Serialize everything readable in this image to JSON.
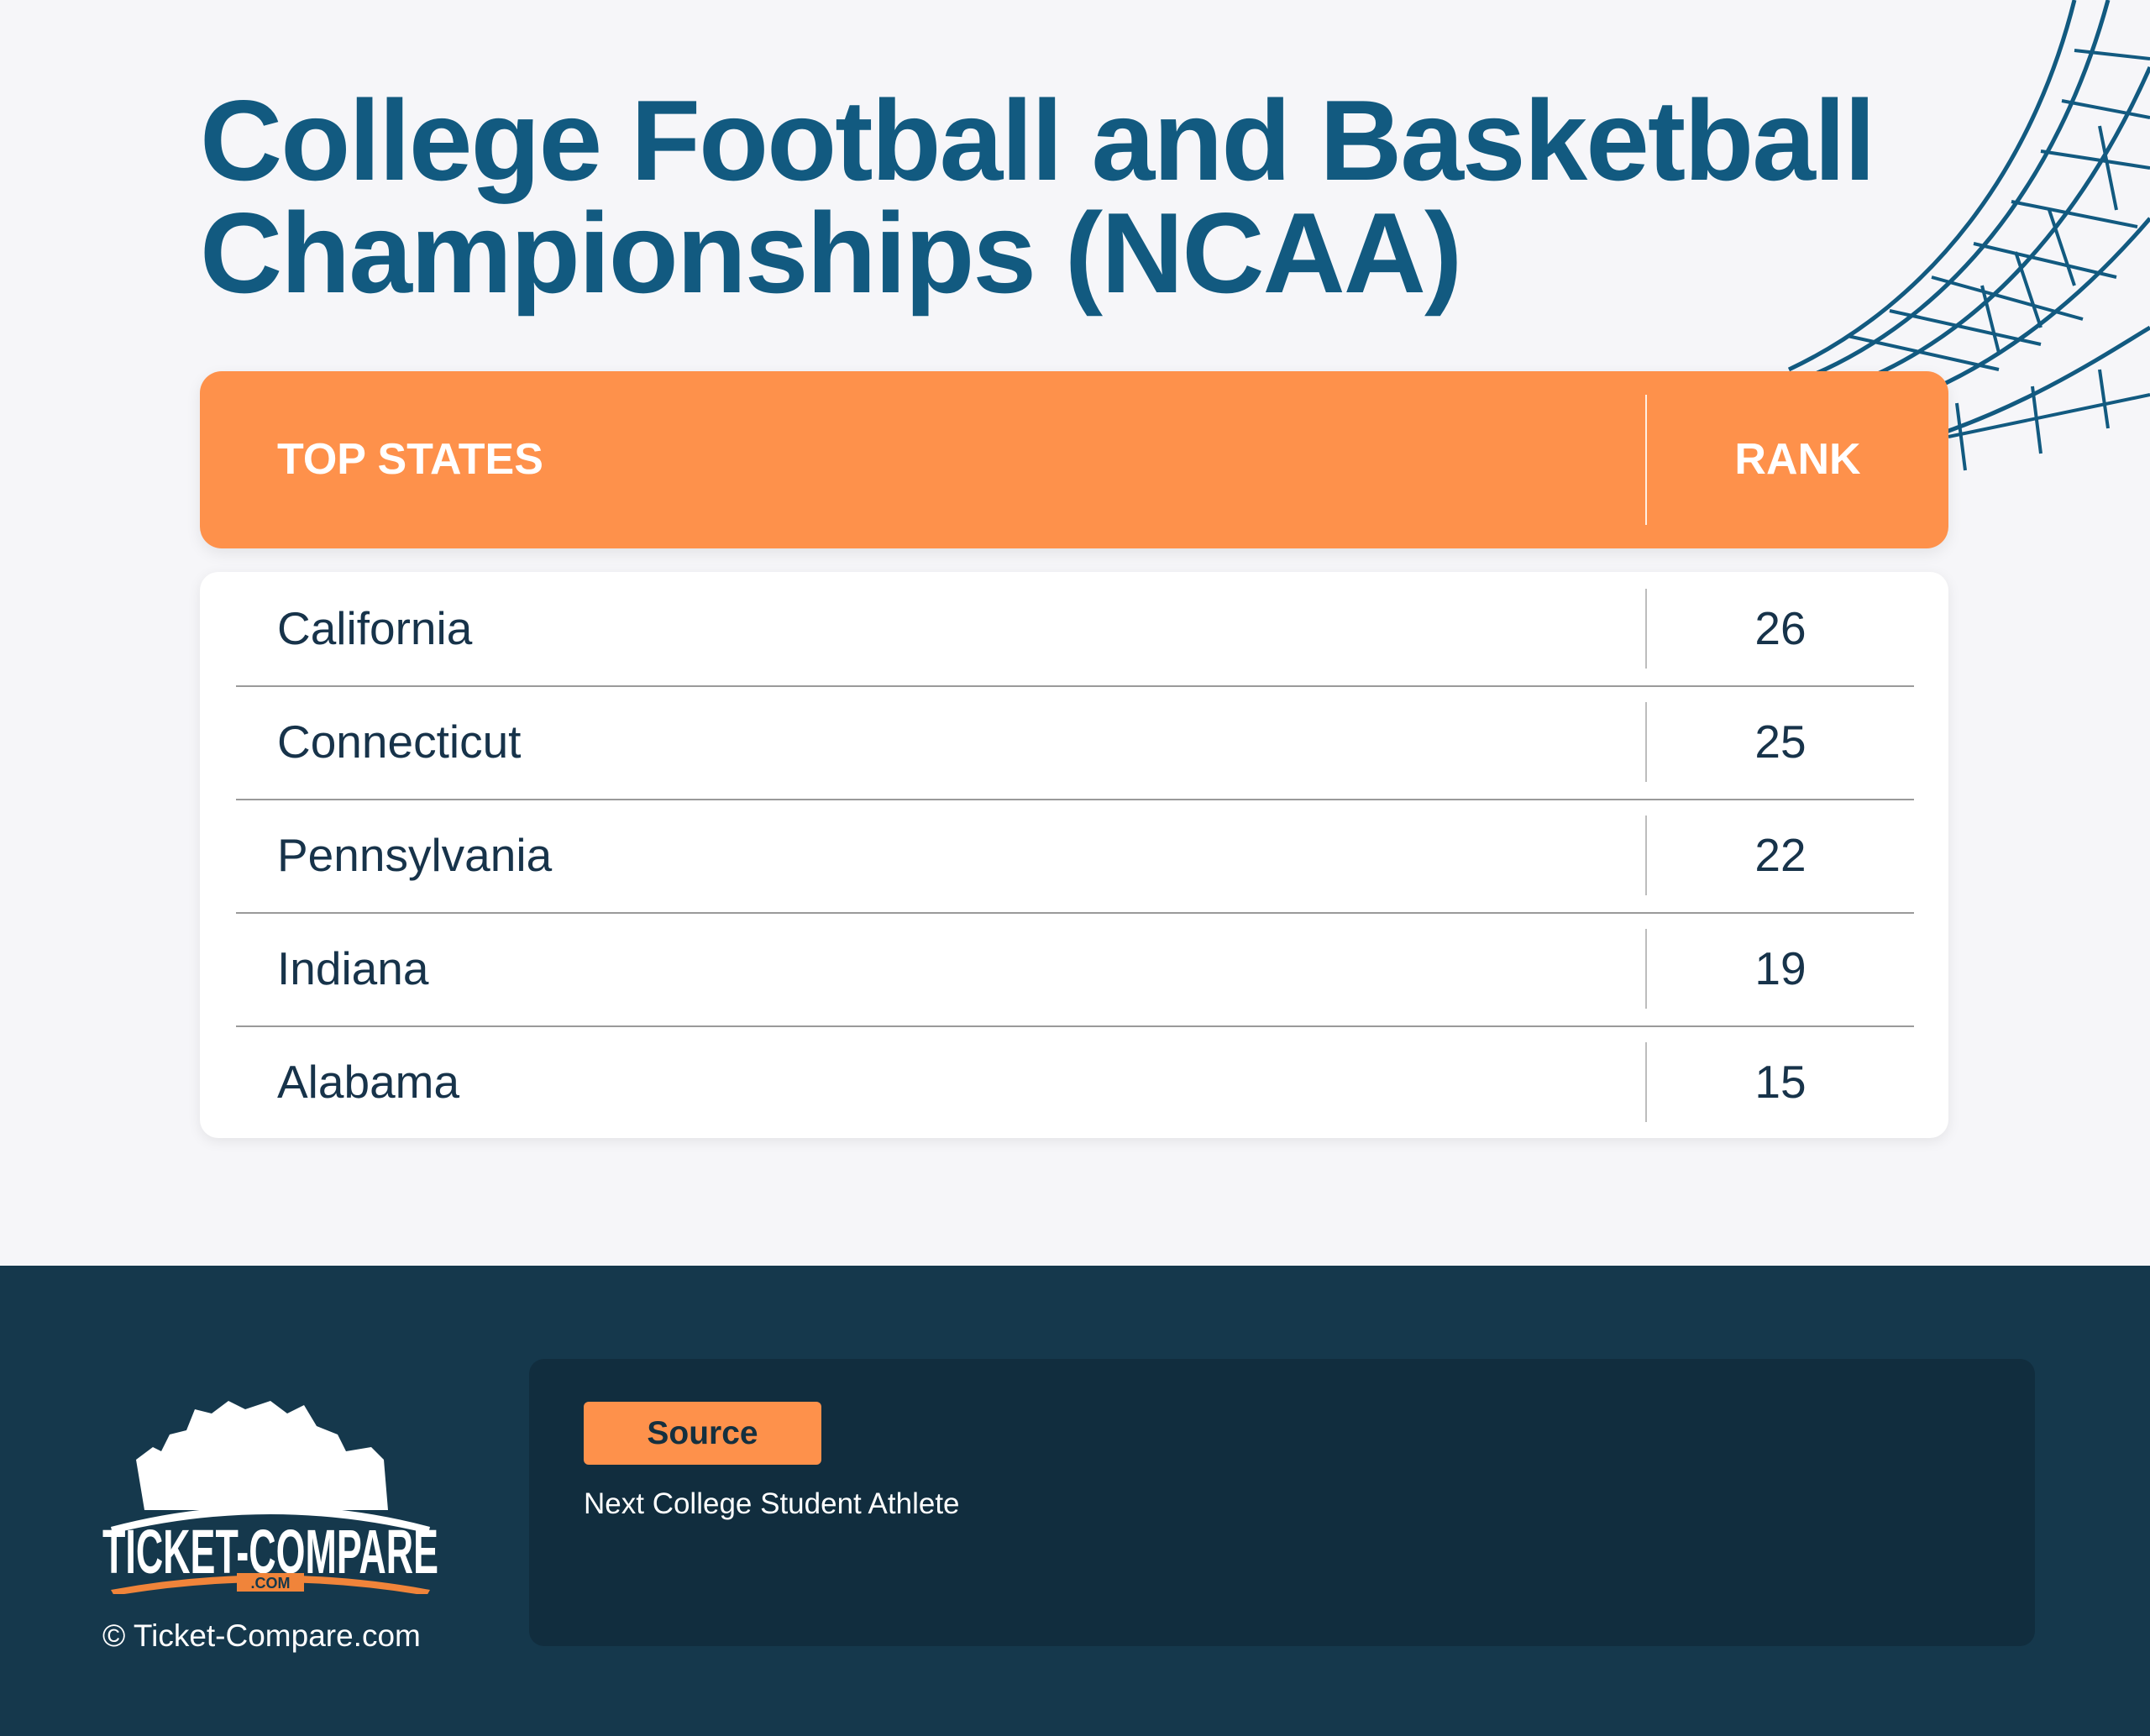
{
  "title": "College Football and Basketball Championships (NCAA)",
  "table": {
    "headers": [
      "TOP STATES",
      "RANK"
    ],
    "rows": [
      {
        "state": "California",
        "rank": "26"
      },
      {
        "state": "Connecticut",
        "rank": "25"
      },
      {
        "state": "Pennsylvania",
        "rank": "22"
      },
      {
        "state": "Indiana",
        "rank": "19"
      },
      {
        "state": "Alabama",
        "rank": "15"
      }
    ]
  },
  "footer": {
    "logo_text": "TICKET-COMPARE .COM",
    "copyright": "© Ticket-Compare.com",
    "source_label": "Source",
    "source_text": "Next College Student Athlete"
  },
  "colors": {
    "accent": "#fe914b",
    "title": "#125a80",
    "footer_bg": "#15384c",
    "panel_bg": "#112d3e"
  },
  "icons": [
    "stadium-illustration",
    "ticket-compare-logo"
  ]
}
